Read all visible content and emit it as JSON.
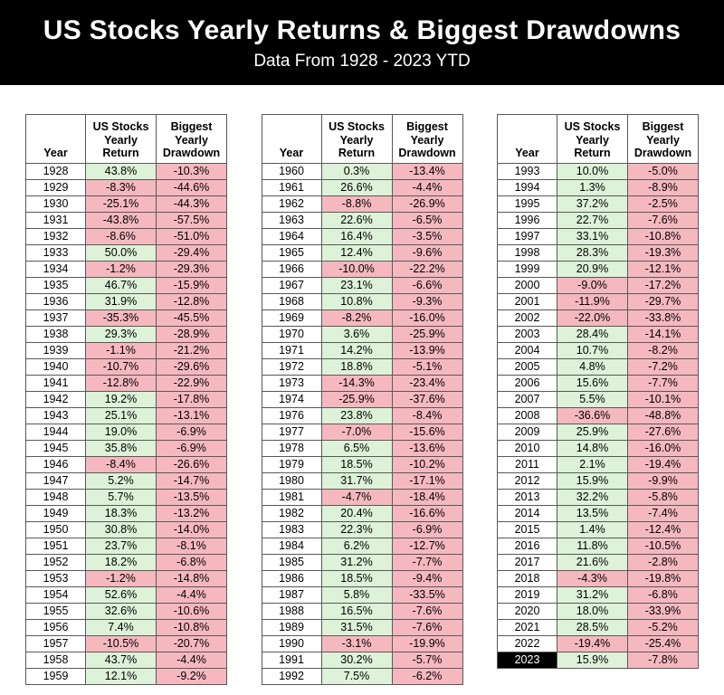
{
  "header": {
    "title": "US Stocks Yearly Returns & Biggest Drawdowns",
    "subtitle": "Data From 1928 - 2023 YTD"
  },
  "colors": {
    "positive_bg": "#ddf2d8",
    "negative_bg": "#f6b8bf",
    "highlight_year_bg": "#000000",
    "highlight_year_fg": "#ffffff"
  },
  "chart_data": {
    "type": "table",
    "title": "US Stocks Yearly Returns & Biggest Drawdowns",
    "subtitle": "Data From 1928 - 2023 YTD",
    "columns": [
      "Year",
      "US Stocks Yearly Return",
      "Biggest Yearly Drawdown"
    ],
    "highlight_year": "2023",
    "tables": [
      {
        "rows": [
          [
            "1928",
            "43.8%",
            "-10.3%"
          ],
          [
            "1929",
            "-8.3%",
            "-44.6%"
          ],
          [
            "1930",
            "-25.1%",
            "-44.3%"
          ],
          [
            "1931",
            "-43.8%",
            "-57.5%"
          ],
          [
            "1932",
            "-8.6%",
            "-51.0%"
          ],
          [
            "1933",
            "50.0%",
            "-29.4%"
          ],
          [
            "1934",
            "-1.2%",
            "-29.3%"
          ],
          [
            "1935",
            "46.7%",
            "-15.9%"
          ],
          [
            "1936",
            "31.9%",
            "-12.8%"
          ],
          [
            "1937",
            "-35.3%",
            "-45.5%"
          ],
          [
            "1938",
            "29.3%",
            "-28.9%"
          ],
          [
            "1939",
            "-1.1%",
            "-21.2%"
          ],
          [
            "1940",
            "-10.7%",
            "-29.6%"
          ],
          [
            "1941",
            "-12.8%",
            "-22.9%"
          ],
          [
            "1942",
            "19.2%",
            "-17.8%"
          ],
          [
            "1943",
            "25.1%",
            "-13.1%"
          ],
          [
            "1944",
            "19.0%",
            "-6.9%"
          ],
          [
            "1945",
            "35.8%",
            "-6.9%"
          ],
          [
            "1946",
            "-8.4%",
            "-26.6%"
          ],
          [
            "1947",
            "5.2%",
            "-14.7%"
          ],
          [
            "1948",
            "5.7%",
            "-13.5%"
          ],
          [
            "1949",
            "18.3%",
            "-13.2%"
          ],
          [
            "1950",
            "30.8%",
            "-14.0%"
          ],
          [
            "1951",
            "23.7%",
            "-8.1%"
          ],
          [
            "1952",
            "18.2%",
            "-6.8%"
          ],
          [
            "1953",
            "-1.2%",
            "-14.8%"
          ],
          [
            "1954",
            "52.6%",
            "-4.4%"
          ],
          [
            "1955",
            "32.6%",
            "-10.6%"
          ],
          [
            "1956",
            "7.4%",
            "-10.8%"
          ],
          [
            "1957",
            "-10.5%",
            "-20.7%"
          ],
          [
            "1958",
            "43.7%",
            "-4.4%"
          ],
          [
            "1959",
            "12.1%",
            "-9.2%"
          ]
        ]
      },
      {
        "rows": [
          [
            "1960",
            "0.3%",
            "-13.4%"
          ],
          [
            "1961",
            "26.6%",
            "-4.4%"
          ],
          [
            "1962",
            "-8.8%",
            "-26.9%"
          ],
          [
            "1963",
            "22.6%",
            "-6.5%"
          ],
          [
            "1964",
            "16.4%",
            "-3.5%"
          ],
          [
            "1965",
            "12.4%",
            "-9.6%"
          ],
          [
            "1966",
            "-10.0%",
            "-22.2%"
          ],
          [
            "1967",
            "23.1%",
            "-6.6%"
          ],
          [
            "1968",
            "10.8%",
            "-9.3%"
          ],
          [
            "1969",
            "-8.2%",
            "-16.0%"
          ],
          [
            "1970",
            "3.6%",
            "-25.9%"
          ],
          [
            "1971",
            "14.2%",
            "-13.9%"
          ],
          [
            "1972",
            "18.8%",
            "-5.1%"
          ],
          [
            "1973",
            "-14.3%",
            "-23.4%"
          ],
          [
            "1974",
            "-25.9%",
            "-37.6%"
          ],
          [
            "1976",
            "23.8%",
            "-8.4%"
          ],
          [
            "1977",
            "-7.0%",
            "-15.6%"
          ],
          [
            "1978",
            "6.5%",
            "-13.6%"
          ],
          [
            "1979",
            "18.5%",
            "-10.2%"
          ],
          [
            "1980",
            "31.7%",
            "-17.1%"
          ],
          [
            "1981",
            "-4.7%",
            "-18.4%"
          ],
          [
            "1982",
            "20.4%",
            "-16.6%"
          ],
          [
            "1983",
            "22.3%",
            "-6.9%"
          ],
          [
            "1984",
            "6.2%",
            "-12.7%"
          ],
          [
            "1985",
            "31.2%",
            "-7.7%"
          ],
          [
            "1986",
            "18.5%",
            "-9.4%"
          ],
          [
            "1987",
            "5.8%",
            "-33.5%"
          ],
          [
            "1988",
            "16.5%",
            "-7.6%"
          ],
          [
            "1989",
            "31.5%",
            "-7.6%"
          ],
          [
            "1990",
            "-3.1%",
            "-19.9%"
          ],
          [
            "1991",
            "30.2%",
            "-5.7%"
          ],
          [
            "1992",
            "7.5%",
            "-6.2%"
          ]
        ]
      },
      {
        "rows": [
          [
            "1993",
            "10.0%",
            "-5.0%"
          ],
          [
            "1994",
            "1.3%",
            "-8.9%"
          ],
          [
            "1995",
            "37.2%",
            "-2.5%"
          ],
          [
            "1996",
            "22.7%",
            "-7.6%"
          ],
          [
            "1997",
            "33.1%",
            "-10.8%"
          ],
          [
            "1998",
            "28.3%",
            "-19.3%"
          ],
          [
            "1999",
            "20.9%",
            "-12.1%"
          ],
          [
            "2000",
            "-9.0%",
            "-17.2%"
          ],
          [
            "2001",
            "-11.9%",
            "-29.7%"
          ],
          [
            "2002",
            "-22.0%",
            "-33.8%"
          ],
          [
            "2003",
            "28.4%",
            "-14.1%"
          ],
          [
            "2004",
            "10.7%",
            "-8.2%"
          ],
          [
            "2005",
            "4.8%",
            "-7.2%"
          ],
          [
            "2006",
            "15.6%",
            "-7.7%"
          ],
          [
            "2007",
            "5.5%",
            "-10.1%"
          ],
          [
            "2008",
            "-36.6%",
            "-48.8%"
          ],
          [
            "2009",
            "25.9%",
            "-27.6%"
          ],
          [
            "2010",
            "14.8%",
            "-16.0%"
          ],
          [
            "2011",
            "2.1%",
            "-19.4%"
          ],
          [
            "2012",
            "15.9%",
            "-9.9%"
          ],
          [
            "2013",
            "32.2%",
            "-5.8%"
          ],
          [
            "2014",
            "13.5%",
            "-7.4%"
          ],
          [
            "2015",
            "1.4%",
            "-12.4%"
          ],
          [
            "2016",
            "11.8%",
            "-10.5%"
          ],
          [
            "2017",
            "21.6%",
            "-2.8%"
          ],
          [
            "2018",
            "-4.3%",
            "-19.8%"
          ],
          [
            "2019",
            "31.2%",
            "-6.8%"
          ],
          [
            "2020",
            "18.0%",
            "-33.9%"
          ],
          [
            "2021",
            "28.5%",
            "-5.2%"
          ],
          [
            "2022",
            "-19.4%",
            "-25.4%"
          ],
          [
            "2023",
            "15.9%",
            "-7.8%"
          ]
        ]
      }
    ]
  }
}
